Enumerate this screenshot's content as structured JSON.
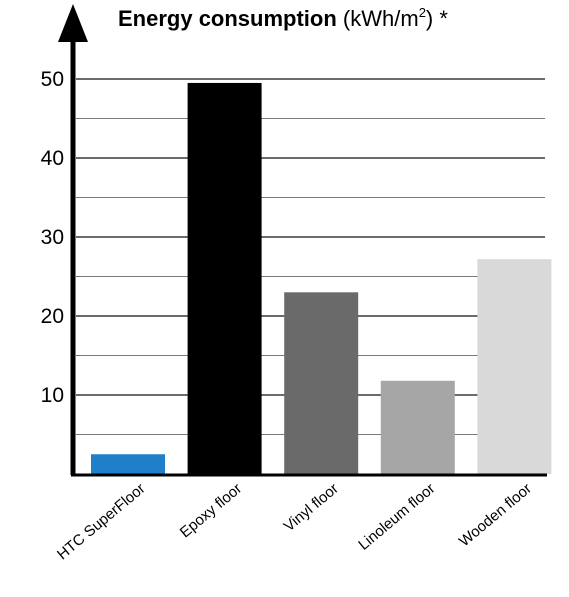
{
  "chart_data": {
    "type": "bar",
    "title": "Energy consumption",
    "title_unit_prefix": "(kWh/m",
    "title_unit_superscript": "2",
    "title_unit_suffix": ") *",
    "categories": [
      "HTC SuperFloor",
      "Epoxy floor",
      "Vinyl floor",
      "Linoleum floor",
      "Wooden floor"
    ],
    "values": [
      2.5,
      49.5,
      23,
      11.8,
      27.2
    ],
    "colors": [
      "#1f7fc9",
      "#000000",
      "#6b6a6b",
      "#a6a6a6",
      "#d9d9d9"
    ],
    "ylim": [
      0,
      50
    ],
    "yticks": [
      10,
      20,
      30,
      40,
      50
    ],
    "gridlines": [
      5,
      10,
      15,
      20,
      25,
      30,
      35,
      40,
      45,
      50
    ],
    "grid": true,
    "legend": "none"
  }
}
